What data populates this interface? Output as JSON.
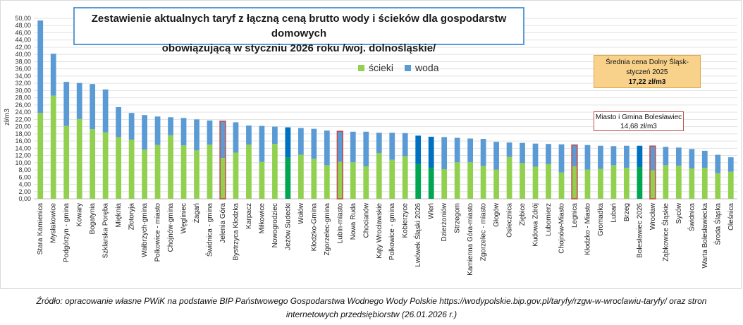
{
  "chart_data": {
    "type": "bar",
    "stacked": true,
    "title_line1": "Zestawienie aktualnych taryf  z łączną ceną brutto wody i ścieków dla gospodarstw domowych",
    "title_line2": "obowiązującą w styczniu 2026 roku  /woj. dolnośląskie/",
    "ylabel": "zł/m3",
    "ylim": [
      0,
      50
    ],
    "ytick_step": 2,
    "ytick_labels": [
      "0,00",
      "2,00",
      "4,00",
      "6,00",
      "8,00",
      "10,00",
      "12,00",
      "14,00",
      "16,00",
      "18,00",
      "20,00",
      "22,00",
      "24,00",
      "26,00",
      "28,00",
      "30,00",
      "32,00",
      "34,00",
      "36,00",
      "38,00",
      "40,00",
      "42,00",
      "44,00",
      "46,00",
      "48,00",
      "50,00"
    ],
    "legend": [
      {
        "name": "ścieki",
        "color": "#92d050"
      },
      {
        "name": "woda",
        "color": "#5b9bd5"
      }
    ],
    "categories": [
      "Stara Kamienica",
      "Mysłakowice",
      "Podgórzyn - gmina",
      "Kowary",
      "Bogatynia",
      "Szklarska Poręba",
      "Mięknia",
      "Złotoryja",
      "Wałbrzych-gmina",
      "Polkowice - miasto",
      "Chojnów-gmina",
      "Węgliniec",
      "Żagań",
      "Świdnica - gmina",
      "Jelenia Góra",
      "Bystrzyca Kłodzka",
      "Karpacz",
      "Miłkowice",
      "Nowogrodziec",
      "Jeżów Sudecki",
      "Wołów",
      "Kłodzko-Gmina",
      "Zgorzelec-gmina",
      "Lubin-miasto",
      "Nowa Ruda",
      "Chocianów",
      "Kąty Wrocławskie",
      "Polkowice - gmina",
      "Kobierzyce",
      "Lwówek Śląski 2026",
      "Wleń",
      "Dzierżoniów",
      "Strzegom",
      "Kamienna Góra-miasto",
      "Zgorzelec - miasto",
      "Głogów",
      "Osiecznica",
      "Ziębice",
      "Kudowa Zdrój",
      "Lubomierz",
      "Chojnów-Miasto",
      "Legnica",
      "Kłodzko - Miasto",
      "Gromadka",
      "Lubań",
      "Brzeg",
      "Bolesławiec 2026",
      "Wrocław",
      "Ząbkowice Śląskie",
      "Syców",
      "Świdnica",
      "Warta Bolesławiecka",
      "Środa Śląska",
      "Oleśnica"
    ],
    "series": [
      {
        "name": "ścieki",
        "values": [
          23.8,
          28.6,
          20.2,
          22.1,
          19.3,
          18.4,
          17.1,
          16.4,
          13.6,
          14.9,
          17.6,
          14.8,
          13.4,
          15.0,
          11.3,
          12.8,
          15.0,
          10.2,
          15.2,
          11.4,
          12.2,
          11.1,
          9.3,
          10.2,
          10.1,
          9.0,
          12.7,
          10.8,
          11.8,
          9.6,
          8.6,
          8.2,
          10.1,
          10.1,
          9.1,
          8.1,
          11.6,
          9.9,
          8.9,
          9.6,
          7.3,
          9.0,
          8.1,
          8.3,
          9.3,
          8.6,
          8.8,
          7.9,
          9.3,
          9.2,
          8.4,
          8.6,
          7.1,
          7.5
        ]
      },
      {
        "name": "woda",
        "values": [
          25.6,
          11.6,
          12.2,
          10.0,
          12.5,
          11.9,
          8.3,
          7.4,
          9.6,
          7.9,
          5.0,
          7.6,
          8.6,
          6.7,
          10.2,
          8.4,
          5.3,
          10.0,
          4.8,
          8.4,
          7.4,
          8.3,
          9.6,
          8.5,
          8.5,
          9.6,
          5.6,
          7.5,
          6.4,
          7.9,
          8.6,
          8.9,
          6.8,
          6.6,
          7.5,
          7.7,
          4.0,
          5.6,
          6.4,
          5.6,
          7.8,
          5.9,
          6.8,
          6.4,
          5.3,
          6.1,
          5.9,
          6.7,
          5.1,
          5.0,
          5.4,
          4.7,
          5.1,
          4.0
        ]
      }
    ],
    "highlight": {
      "dark_green": "#00a651",
      "dark_blue": "#0070c0",
      "outline": "#c0504d",
      "dark_indices": [
        19,
        29,
        30,
        46
      ],
      "outlined_indices": [
        14,
        23,
        41,
        47
      ]
    },
    "annotations": {
      "average_line1": "Średnia cena Dolny Śląsk-",
      "average_line2": "styczeń 2025",
      "average_value": "17,22 zł/m3",
      "boleslawiec_line1": "Miasto i Gmina Bolesławiec",
      "boleslawiec_line2": "14,68 zł/m3"
    }
  },
  "source_line1": "Źródło:  opracowanie własne PWiK na podstawie BIP Państwowego Gospodarstwa Wodnego Wody Polskie https://wodypolskie.bip.gov.pl/taryfy/rzgw-w-wroclawiu-taryfy/ oraz stron",
  "source_line2": "internetowych przedsiębiorstw (26.01.2026 r.)"
}
